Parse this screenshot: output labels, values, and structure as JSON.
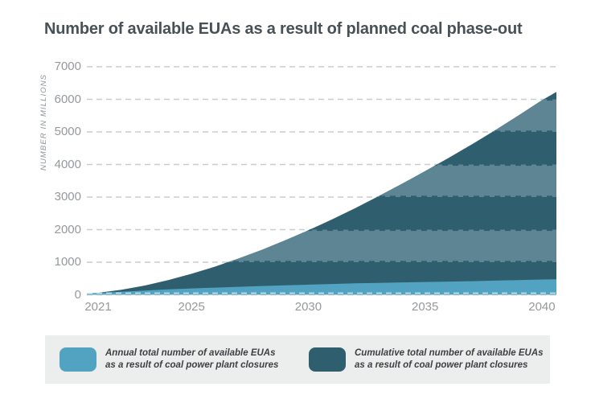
{
  "title": "Number of available EUAs as a result of planned coal phase-out",
  "colors": {
    "annual": "#52a3c1",
    "cumulative": "#2f5f6e",
    "cumulative_band_light": "#5e8593",
    "gridline": "#c8cccd",
    "legend_background": "#eceded",
    "axis_text": "#95999c",
    "title_text": "#485156",
    "legend_text": "#3e4144",
    "zero_line_on_area": "rgba(255,255,255,0.55)"
  },
  "y_axis": {
    "label": "NUMBER IN MILLIONS",
    "ticks": [
      0,
      1000,
      2000,
      3000,
      4000,
      5000,
      6000,
      7000
    ]
  },
  "x_axis": {
    "ticks": [
      2021,
      2025,
      2030,
      2035,
      2040
    ]
  },
  "legend": {
    "items": [
      {
        "label_line1": "Annual total number of available EUAs",
        "label_line2": "as a result of coal power plant closures",
        "color": "#52a3c1"
      },
      {
        "label_line1": "Cumulative total number of available EUAs",
        "label_line2": "as a result of coal power plant closures",
        "color": "#2f5f6e"
      }
    ]
  },
  "chart_data": {
    "type": "area",
    "title": "Number of available EUAs as a result of planned coal phase-out",
    "xlabel": "",
    "ylabel": "NUMBER IN MILLIONS",
    "x": [
      2021,
      2022,
      2023,
      2024,
      2025,
      2026,
      2027,
      2028,
      2029,
      2030,
      2031,
      2032,
      2033,
      2034,
      2035,
      2036,
      2037,
      2038,
      2039,
      2040
    ],
    "series": [
      {
        "name": "Annual total number of available EUAs as a result of coal power plant closures",
        "values": [
          60,
          95,
          130,
          165,
          195,
          220,
          245,
          268,
          290,
          310,
          330,
          350,
          366,
          380,
          392,
          404,
          418,
          435,
          452,
          468
        ]
      },
      {
        "name": "Cumulative total number of available EUAs as a result of coal power plant closures",
        "values": [
          60,
          155,
          285,
          450,
          645,
          865,
          1110,
          1378,
          1668,
          1978,
          2308,
          2658,
          3024,
          3404,
          3796,
          4200,
          4618,
          5053,
          5505,
          5973
        ]
      }
    ],
    "ylim": [
      0,
      7000
    ],
    "xlim": [
      2020.5,
      2040.6
    ],
    "grid": "horizontal dashed",
    "legend_position": "bottom",
    "style_note": "cumulative area drawn with alternating dark/light horizontal bands per 1000-unit gridline interval"
  }
}
